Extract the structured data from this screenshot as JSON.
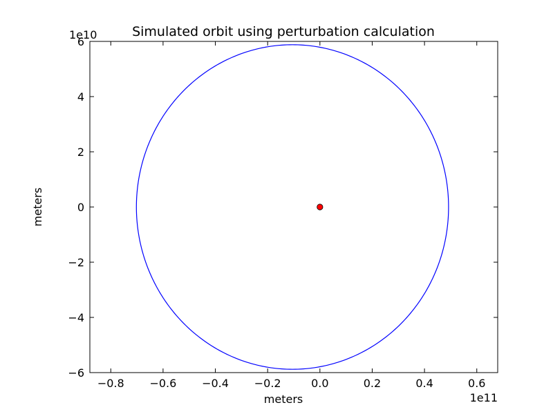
{
  "chart_data": {
    "type": "line",
    "title": "Simulated orbit using perturbation calculation",
    "xlabel": "meters",
    "ylabel": "meters",
    "x_offset_text": "1e11",
    "y_offset_text": "1e10",
    "xlim": [
      -0.88,
      0.68
    ],
    "ylim": [
      -6,
      6
    ],
    "xticks": [
      -0.8,
      -0.6,
      -0.4,
      -0.2,
      0.0,
      0.2,
      0.4,
      0.6
    ],
    "xtick_labels": [
      "−0.8",
      "−0.6",
      "−0.4",
      "−0.2",
      "0.0",
      "0.2",
      "0.4",
      "0.6"
    ],
    "yticks": [
      -6,
      -4,
      -2,
      0,
      2,
      4,
      6
    ],
    "ytick_labels": [
      "−6",
      "−4",
      "−2",
      "0",
      "2",
      "4",
      "6"
    ],
    "grid": false,
    "series": [
      {
        "kind": "ellipse-orbit",
        "color": "#0000ff",
        "center": [
          -0.105,
          0.0
        ],
        "semi_axis_x": 0.597,
        "semi_axis_y": 5.88,
        "x_min": -0.702,
        "x_max": 0.492,
        "y_min": -5.88,
        "y_max": 5.88
      }
    ],
    "markers": [
      {
        "x": 0.0,
        "y": 0.0,
        "color": "#ff0000",
        "edge_color": "#000000"
      }
    ]
  }
}
